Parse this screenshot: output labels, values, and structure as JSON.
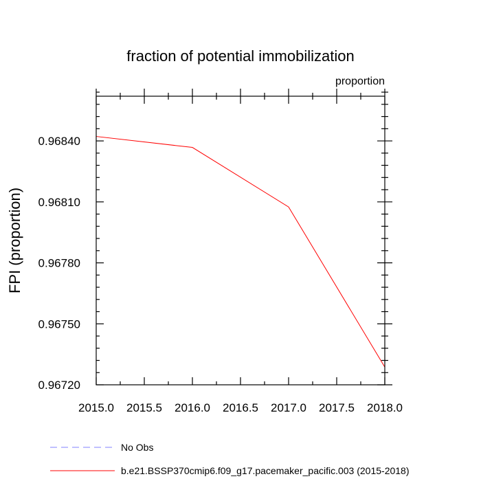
{
  "chart_data": {
    "type": "line",
    "title": "fraction of potential immobilization",
    "units_label": "proportion",
    "xlabel": "",
    "ylabel": "FPI  (proportion)",
    "xlim": [
      2015.0,
      2018.0
    ],
    "ylim": [
      0.9672,
      0.96862
    ],
    "x_ticks": [
      2015.0,
      2015.5,
      2016.0,
      2016.5,
      2017.0,
      2017.5,
      2018.0
    ],
    "x_tick_labels": [
      "2015.0",
      "2015.5",
      "2016.0",
      "2016.5",
      "2017.0",
      "2017.5",
      "2018.0"
    ],
    "x_minor_step": 0.25,
    "y_ticks": [
      0.9672,
      0.9675,
      0.9678,
      0.9681,
      0.9684
    ],
    "y_tick_labels": [
      "0.96720",
      "0.96750",
      "0.96780",
      "0.96810",
      "0.96840"
    ],
    "y_minor_step": 6e-05,
    "grid": false,
    "legend_position": "bottom-left",
    "series": [
      {
        "name": "b.e21.BSSP370cmip6.f09_g17.pacemaker_pacific.003 (2015-2018)",
        "color": "#ff0000",
        "dash": "solid",
        "x": [
          2015.0,
          2016.0,
          2017.0,
          2018.0
        ],
        "values": [
          0.968422,
          0.968368,
          0.968075,
          0.967287
        ]
      }
    ],
    "legend": [
      {
        "label": "No Obs",
        "color": "#8080ff",
        "dash": "dashed"
      },
      {
        "label": "b.e21.BSSP370cmip6.f09_g17.pacemaker_pacific.003 (2015-2018)",
        "color": "#ff0000",
        "dash": "solid"
      }
    ]
  }
}
